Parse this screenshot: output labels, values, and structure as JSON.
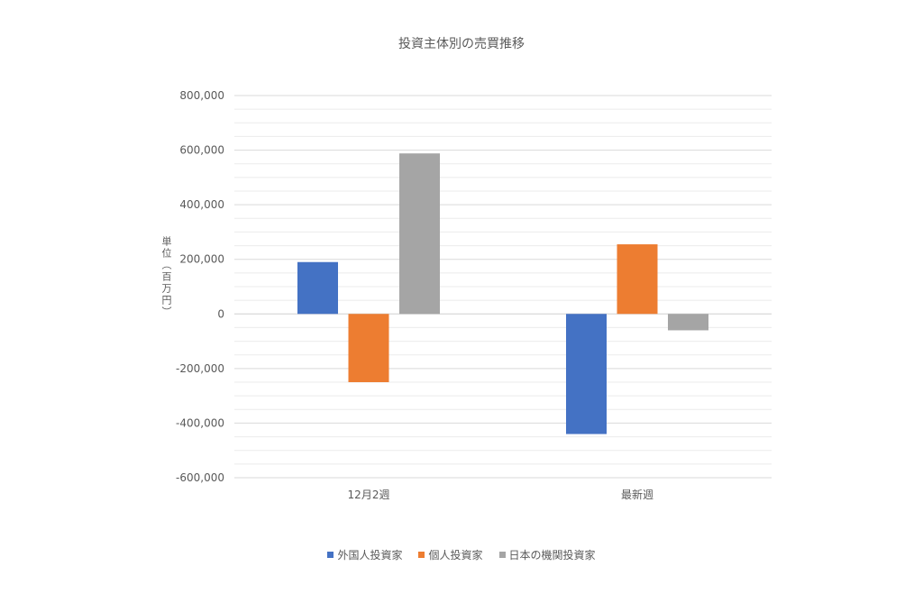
{
  "chart_data": {
    "type": "bar",
    "title": "投資主体別の売買推移",
    "ylabel": "単位（百万円）",
    "xlabel": "",
    "categories": [
      "12月2週",
      "最新週"
    ],
    "series": [
      {
        "name": "外国人投資家",
        "values": [
          190000,
          -440000
        ],
        "color": "#4472C4"
      },
      {
        "name": "個人投資家",
        "values": [
          -250000,
          255000
        ],
        "color": "#ED7D31"
      },
      {
        "name": "日本の機関投資家",
        "values": [
          588000,
          -60000
        ],
        "color": "#A5A5A5"
      }
    ],
    "ylim": [
      -600000,
      800000
    ],
    "yticks": [
      800000,
      600000,
      400000,
      200000,
      0,
      -200000,
      -400000,
      -600000
    ],
    "ytick_labels": [
      "800,000",
      "600,000",
      "400,000",
      "200,000",
      "0",
      "-200,000",
      "-400,000",
      "-600,000"
    ],
    "grid": true,
    "legend_position": "bottom"
  }
}
